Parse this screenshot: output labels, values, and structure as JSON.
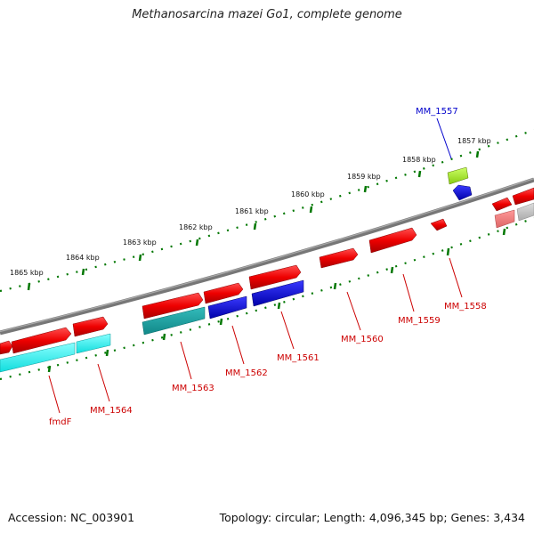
{
  "title": "Methanosarcina mazei Go1, complete genome",
  "footer": {
    "accession": "Accession: NC_003901",
    "summary": "Topology: circular; Length: 4,096,345 bp; Genes: 3,434"
  },
  "scale_labels": [
    "1857 kbp",
    "1858 kbp",
    "1859 kbp",
    "1860 kbp",
    "1861 kbp",
    "1862 kbp",
    "1863 kbp",
    "1864 kbp",
    "1865 kbp"
  ],
  "gene_labels": [
    "MM_1557",
    "MM_1558",
    "MM_1559",
    "MM_1560",
    "MM_1561",
    "MM_1562",
    "MM_1563",
    "MM_1564",
    "fmdF"
  ],
  "colors": {
    "forward_gene": "#ee0000",
    "reverse_gene_blue": "#0000dd",
    "reverse_gene_cyan": "#22eeee",
    "reverse_gene_teal": "#11aaaa",
    "highlight_gene": "#99dd11",
    "backbone": "#777777",
    "tick": "#007700",
    "label_red": "#cc0000",
    "label_blue": "#0000cc"
  }
}
